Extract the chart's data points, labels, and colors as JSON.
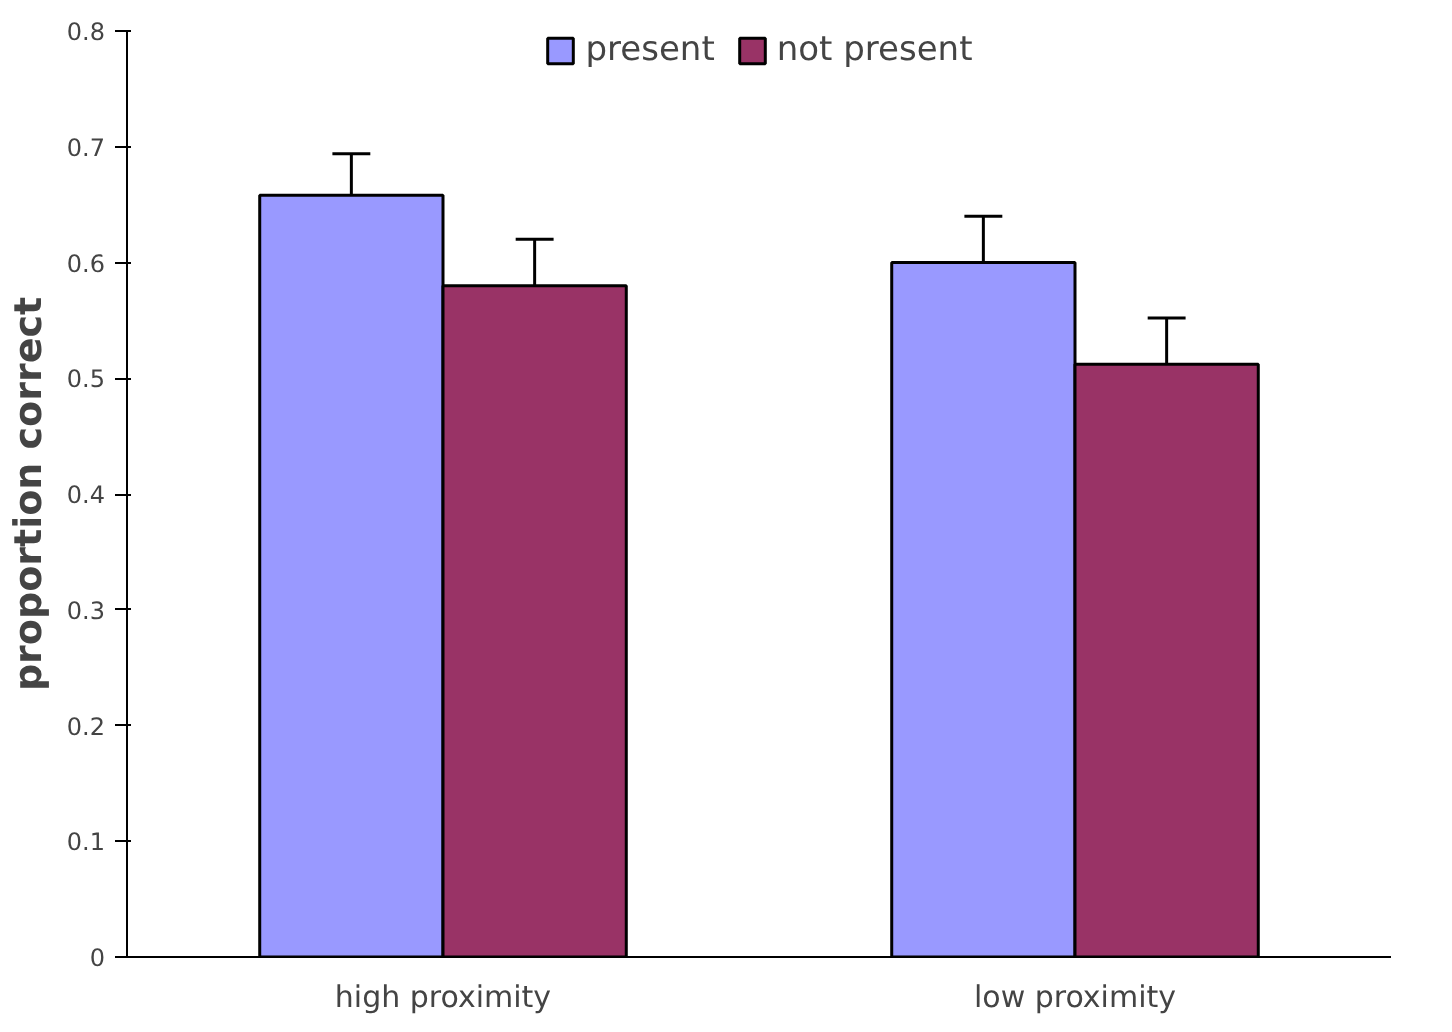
{
  "chart_data": {
    "type": "bar",
    "ylabel": "proportion correct",
    "categories": [
      "high proximity",
      "low proximity"
    ],
    "series": [
      {
        "name": "present",
        "color": "#9999ff",
        "values": [
          0.658,
          0.6
        ],
        "errors": [
          0.036,
          0.04
        ]
      },
      {
        "name": "not present",
        "color": "#993366",
        "values": [
          0.58,
          0.512
        ],
        "errors": [
          0.04,
          0.04
        ]
      }
    ],
    "ylim": [
      0,
      0.8
    ],
    "yticks": [
      0,
      0.1,
      0.2,
      0.3,
      0.4,
      0.5,
      0.6,
      0.7,
      0.8
    ],
    "grid": false,
    "legend": "top"
  }
}
